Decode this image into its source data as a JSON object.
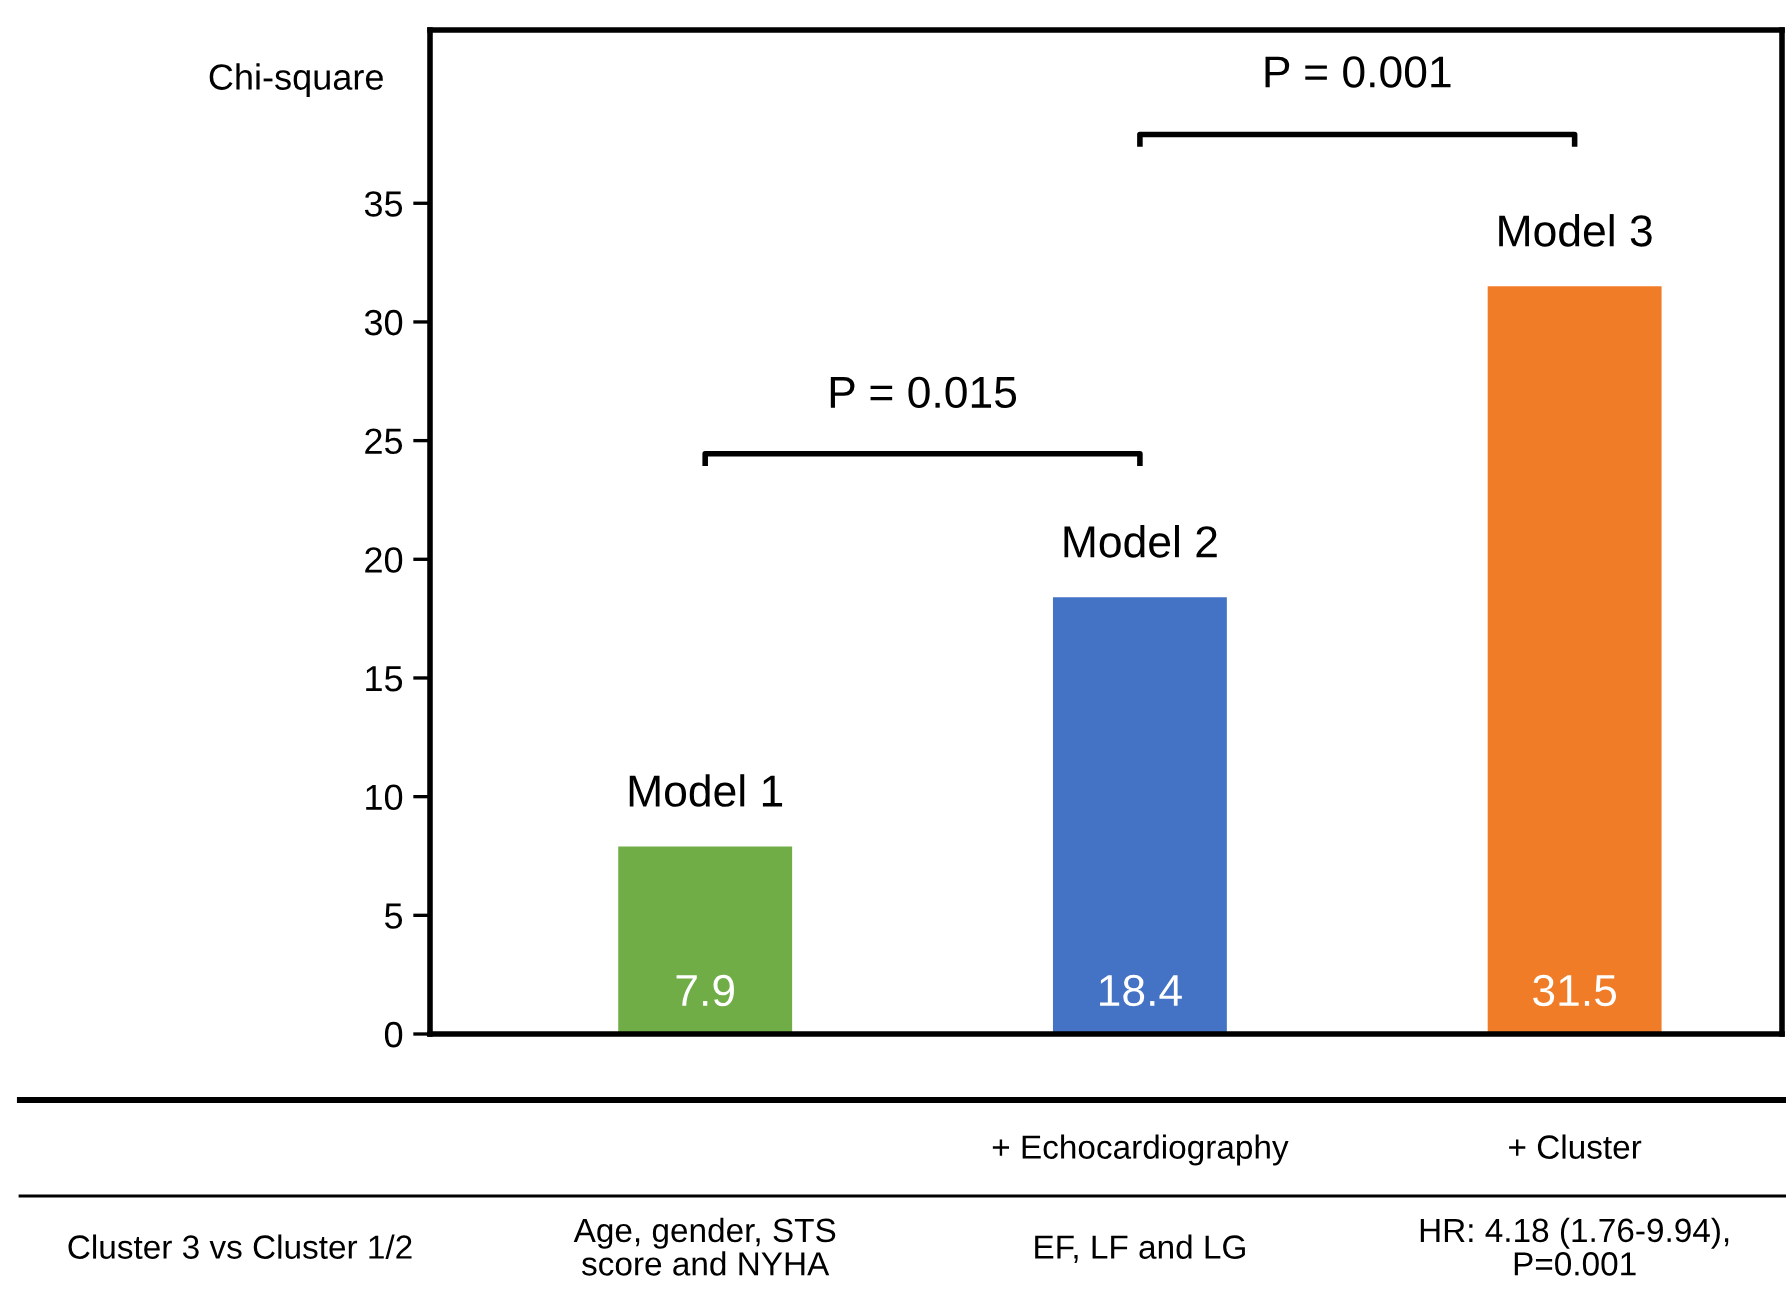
{
  "chart_data": {
    "type": "bar",
    "ylabel": "Chi-square",
    "categories": [
      "Model 1",
      "Model 2",
      "Model 3"
    ],
    "values": [
      7.9,
      18.4,
      31.5
    ],
    "colors": [
      "#70ad47",
      "#4472c4",
      "#f07c28"
    ],
    "data_labels": true,
    "ylim": [
      0,
      42.3
    ],
    "yticks": [
      0,
      5,
      10,
      15,
      20,
      25,
      30,
      35
    ],
    "tick_labels": "y",
    "grid": false,
    "annotations": [
      "P = 0.015",
      "P = 0.001",
      "+ Echocardiography",
      "+ Cluster",
      "Cluster 3 vs Cluster 1/2",
      "Age, gender, STS\nscore and NYHA",
      "EF, LF and LG",
      "HR: 4.18 (1.76-9.94),\nP=0.001"
    ]
  }
}
